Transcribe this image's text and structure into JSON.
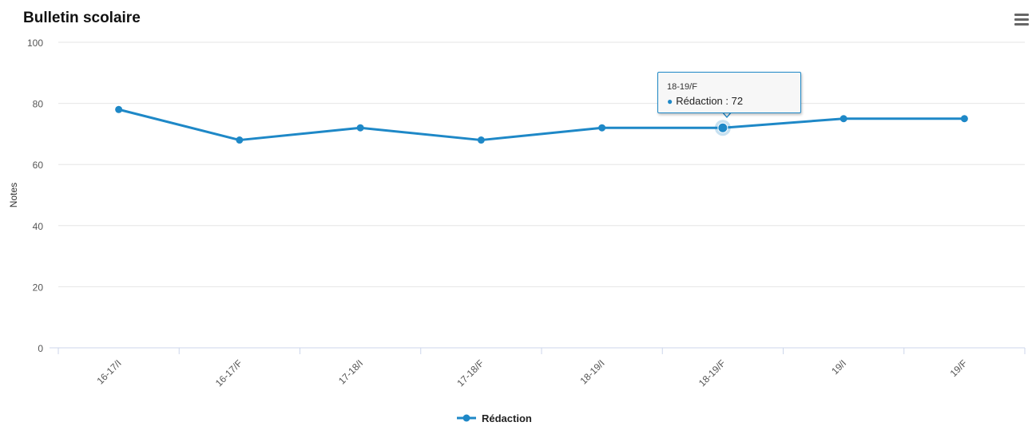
{
  "chart_data": {
    "type": "line",
    "title": "Bulletin scolaire",
    "ylabel": "Notes",
    "xlabel": "",
    "ylim": [
      0,
      100
    ],
    "yticks": [
      "0",
      "20",
      "40",
      "60",
      "80",
      "100"
    ],
    "categories": [
      "16-17/I",
      "16-17/F",
      "17-18/I",
      "17-18/F",
      "18-19/I",
      "18-19/F",
      "19/I",
      "19/F"
    ],
    "series": [
      {
        "name": "Rédaction",
        "values": [
          78,
          68,
          72,
          68,
          72,
          72,
          75,
          75
        ],
        "color": "#1e88c7"
      }
    ],
    "grid": true,
    "legend_position": "bottom-center",
    "tooltip": {
      "category": "18-19/F",
      "label": "Rédaction : 72"
    }
  },
  "icons": {
    "menu": "hamburger-menu-icon"
  }
}
